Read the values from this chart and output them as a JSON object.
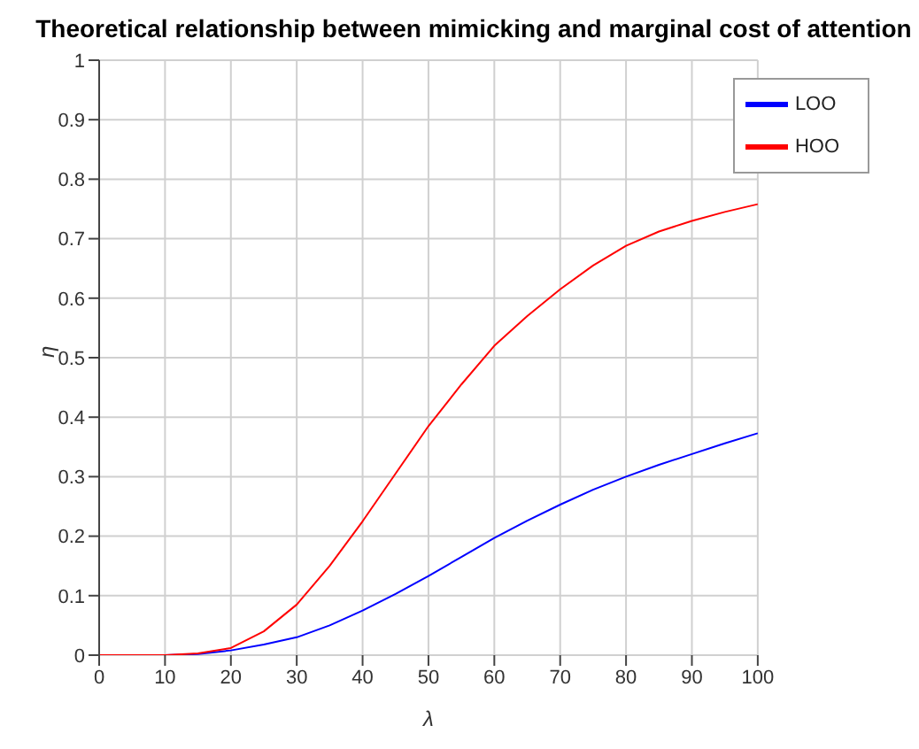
{
  "chart_data": {
    "type": "line",
    "title": "Theoretical relationship between mimicking and marginal cost of attention",
    "xlabel": "λ",
    "ylabel": "η",
    "x": [
      0,
      5,
      10,
      15,
      20,
      25,
      30,
      35,
      40,
      45,
      50,
      55,
      60,
      65,
      70,
      75,
      80,
      85,
      90,
      95,
      100
    ],
    "series": [
      {
        "name": "LOO",
        "color": "#0000ff",
        "values": [
          null,
          null,
          0,
          0.002,
          0.008,
          0.018,
          0.03,
          0.05,
          0.075,
          0.103,
          0.133,
          0.165,
          0.197,
          0.226,
          0.253,
          0.278,
          0.3,
          0.32,
          0.338,
          0.356,
          0.373
        ]
      },
      {
        "name": "HOO",
        "color": "#ff0000",
        "values": [
          0,
          0,
          0,
          0.003,
          0.012,
          0.04,
          0.085,
          0.15,
          0.225,
          0.305,
          0.385,
          0.455,
          0.52,
          0.57,
          0.615,
          0.655,
          0.688,
          0.712,
          0.73,
          0.745,
          0.758
        ]
      }
    ],
    "xlim": [
      0,
      100
    ],
    "xticks": [
      0,
      10,
      20,
      30,
      40,
      50,
      60,
      70,
      80,
      90,
      100
    ],
    "ylim": [
      0,
      1
    ],
    "yticks": [
      0,
      0.1,
      0.2,
      0.3,
      0.4,
      0.5,
      0.6,
      0.7,
      0.8,
      0.9,
      1
    ],
    "grid": true,
    "legend": "top right",
    "marker": "none",
    "line_style": "solid"
  }
}
